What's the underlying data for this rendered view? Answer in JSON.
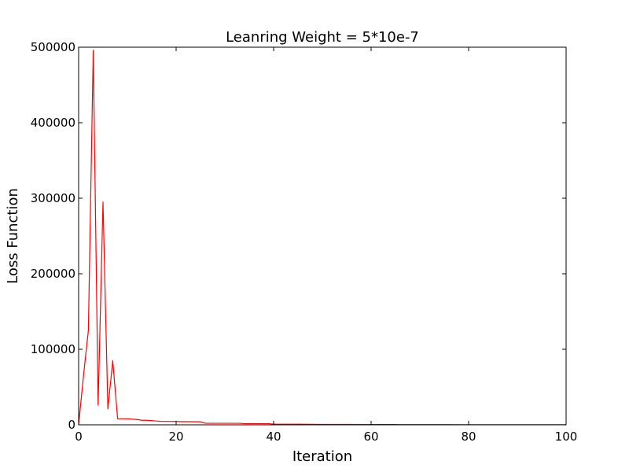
{
  "chart_data": {
    "type": "line",
    "title": "Leanring Weight = 5*10e-7",
    "xlabel": "Iteration",
    "ylabel": "Loss Function",
    "xlim": [
      0,
      100
    ],
    "ylim": [
      0,
      500000
    ],
    "xticks": [
      0,
      20,
      40,
      60,
      80,
      100
    ],
    "yticks": [
      0,
      100000,
      200000,
      300000,
      400000,
      500000
    ],
    "grid": false,
    "legend": "none",
    "series": [
      {
        "color": "#ff0000",
        "x": [
          0,
          1,
          2,
          3,
          4,
          5,
          6,
          7,
          8,
          9,
          10,
          11,
          12,
          13,
          14,
          15,
          16,
          17,
          18,
          19,
          20,
          21,
          22,
          23,
          24,
          25,
          26,
          27,
          28,
          29,
          30,
          31,
          32,
          33,
          34,
          35,
          36,
          37,
          38,
          39,
          40,
          45,
          50,
          55,
          60,
          65,
          70,
          75,
          80,
          85,
          90,
          95,
          100
        ],
        "y": [
          0,
          65000,
          125000,
          496000,
          26000,
          295000,
          21000,
          85000,
          8000,
          8000,
          8000,
          7500,
          7000,
          6000,
          6000,
          5500,
          5000,
          4500,
          4500,
          4500,
          4500,
          4200,
          4200,
          4200,
          4000,
          4000,
          2000,
          2000,
          2000,
          2000,
          2000,
          2000,
          2000,
          2000,
          1500,
          1500,
          1500,
          1500,
          1500,
          1500,
          1000,
          800,
          600,
          500,
          400,
          350,
          300,
          250,
          200,
          180,
          150,
          120,
          100
        ]
      }
    ]
  }
}
